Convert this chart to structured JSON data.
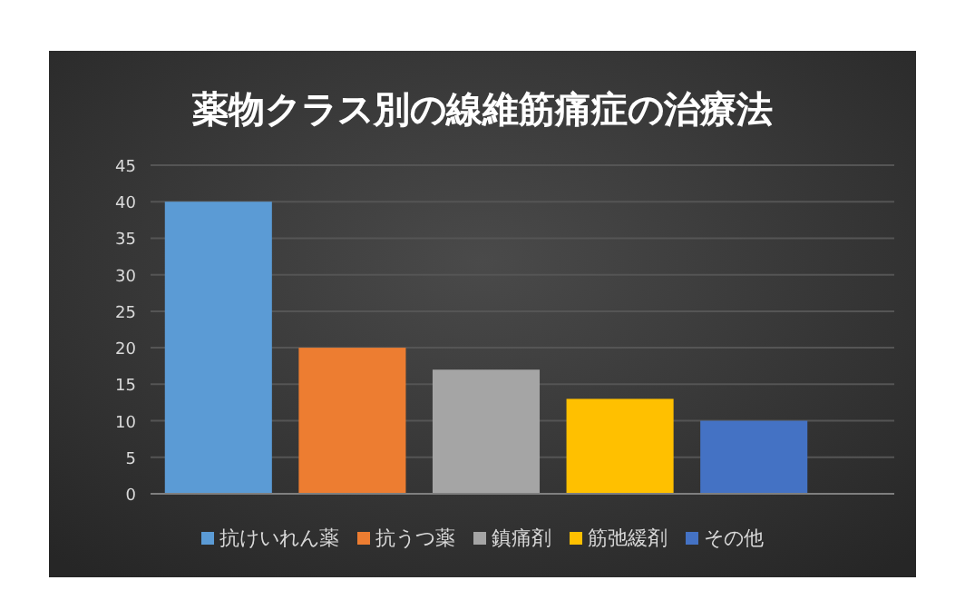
{
  "chart_data": {
    "type": "bar",
    "title": "薬物クラス別の線維筋痛症の治療法",
    "categories": [
      null
    ],
    "series": [
      {
        "name": "抗けいれん薬",
        "color": "#5b9bd5",
        "values": [
          40
        ]
      },
      {
        "name": "抗うつ薬",
        "color": "#ed7d31",
        "values": [
          20
        ]
      },
      {
        "name": "鎮痛剤",
        "color": "#a5a5a5",
        "values": [
          17
        ]
      },
      {
        "name": "筋弛緩剤",
        "color": "#ffc000",
        "values": [
          13
        ]
      },
      {
        "name": "その他",
        "color": "#4472c4",
        "values": [
          10
        ]
      }
    ],
    "ylim": [
      0,
      45
    ],
    "yticks": [
      0,
      5,
      10,
      15,
      20,
      25,
      30,
      35,
      40,
      45
    ],
    "grid": "y",
    "legend": "bottom"
  }
}
